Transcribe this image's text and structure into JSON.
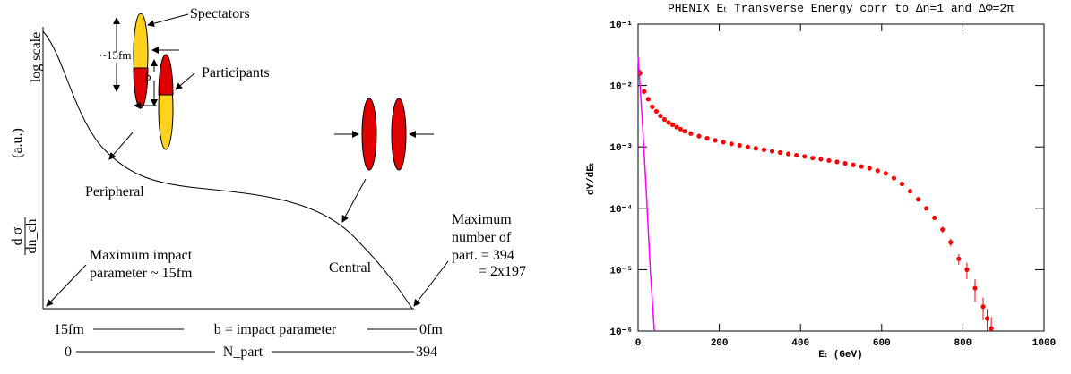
{
  "diagram": {
    "spectators": "Spectators",
    "size": "~15fm",
    "participants": "Participants",
    "b": "b",
    "log_scale": "log scale",
    "au": "(a.u.)",
    "dsigma": "d σ",
    "dnch": "dn_ch",
    "peripheral": "Peripheral",
    "central": "Central",
    "max_impact_1": "Maximum impact",
    "max_impact_2": "parameter ~ 15fm",
    "max_part_1": "Maximum",
    "max_part_2": "number of",
    "max_part_3": "part. = 394",
    "max_part_4": "= 2x197",
    "b_left": "15fm",
    "b_axis": "b = impact parameter",
    "b_right": "0fm",
    "n_left": "0",
    "n_axis": "N_part",
    "n_right": "394"
  },
  "chart_data": {
    "type": "scatter",
    "title": "PHENIX Eₜ Transverse Energy corr to Δη=1 and ΔΦ=2π",
    "x_label": "Eₜ (GeV)",
    "y_label": "dY/dEₜ",
    "log_y": true,
    "xlim": [
      0,
      1000
    ],
    "xticks": [
      0,
      200,
      400,
      600,
      800,
      1000
    ],
    "ylim": [
      1e-06,
      0.1
    ],
    "yticks": [
      {
        "value": 1e-06,
        "label": "10⁻⁶"
      },
      {
        "value": 1e-05,
        "label": "10⁻⁵"
      },
      {
        "value": 0.0001,
        "label": "10⁻⁴"
      },
      {
        "value": 0.001,
        "label": "10⁻³"
      },
      {
        "value": 0.01,
        "label": "10⁻²"
      },
      {
        "value": 0.1,
        "label": "10⁻¹"
      }
    ],
    "series": [
      {
        "color": "#ff0000",
        "x": [
          5,
          15,
          25,
          35,
          45,
          55,
          65,
          75,
          85,
          95,
          105,
          115,
          130,
          150,
          170,
          190,
          210,
          230,
          250,
          270,
          290,
          310,
          330,
          350,
          370,
          390,
          410,
          430,
          450,
          470,
          490,
          510,
          530,
          550,
          570,
          590,
          610,
          630,
          650,
          670,
          690,
          710,
          730,
          750,
          770,
          790,
          810,
          830,
          850,
          860,
          870
        ],
        "values": [
          0.016,
          0.008,
          0.006,
          0.0045,
          0.0038,
          0.0032,
          0.0028,
          0.0025,
          0.0023,
          0.0021,
          0.00195,
          0.0018,
          0.00165,
          0.0015,
          0.00138,
          0.00128,
          0.0012,
          0.00112,
          0.00106,
          0.001,
          0.00095,
          0.0009,
          0.00085,
          0.00081,
          0.00077,
          0.00073,
          0.0007,
          0.00066,
          0.00063,
          0.0006,
          0.00057,
          0.00054,
          0.00051,
          0.00048,
          0.00045,
          0.00041,
          0.00037,
          0.00031,
          0.00025,
          0.00019,
          0.00014,
          0.0001,
          7e-05,
          4.5e-05,
          2.8e-05,
          1.5e-05,
          1e-05,
          5e-06,
          2.5e-06,
          1.6e-06,
          1.1e-06
        ],
        "errors": [
          0.002,
          0.0006,
          0.0004,
          0.0003,
          0.0002,
          0.00016,
          0.00014,
          0.00012,
          0.0001,
          0.0001,
          9e-05,
          8e-05,
          7e-05,
          6e-05,
          5e-05,
          5e-05,
          4e-05,
          4e-05,
          4e-05,
          3e-05,
          3e-05,
          3e-05,
          3e-05,
          3e-05,
          2e-05,
          2e-05,
          2e-05,
          2e-05,
          2e-05,
          2e-05,
          2e-05,
          2e-05,
          2e-05,
          2e-05,
          2e-05,
          2e-05,
          2e-05,
          2e-05,
          2e-05,
          1e-05,
          1e-05,
          8e-06,
          6e-06,
          5e-06,
          4e-06,
          3e-06,
          3e-06,
          2e-06,
          1e-06,
          7e-07,
          6e-07
        ]
      },
      {
        "color": "#ff00ff",
        "x": [
          0,
          10,
          20,
          30,
          40
        ],
        "values": [
          0.03,
          0.003,
          0.0002,
          1e-05,
          1e-06
        ]
      }
    ]
  }
}
